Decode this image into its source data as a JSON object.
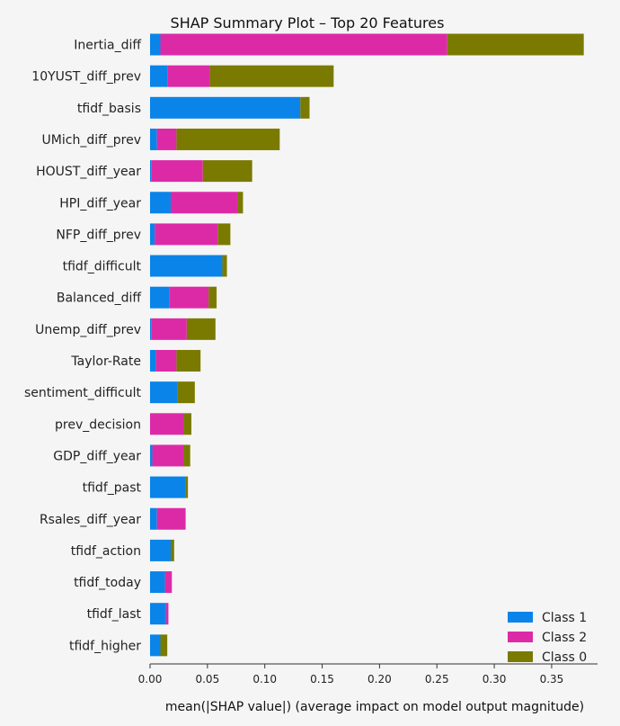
{
  "chart_data": {
    "type": "bar",
    "stacked": true,
    "orientation": "horizontal",
    "title": "SHAP Summary Plot – Top 20 Features",
    "xlabel": "mean(|SHAP value|) (average impact on model output magnitude)",
    "ylabel": "",
    "xlim": [
      0,
      0.39
    ],
    "xticks": [
      "0.00",
      "0.05",
      "0.10",
      "0.15",
      "0.20",
      "0.25",
      "0.30",
      "0.35"
    ],
    "xtick_values": [
      0,
      0.05,
      0.1,
      0.15,
      0.2,
      0.25,
      0.3,
      0.35
    ],
    "grid": false,
    "legend_position": "lower-right",
    "categories": [
      "Inertia_diff",
      "10YUST_diff_prev",
      "tfidf_basis",
      "UMich_diff_prev",
      "HOUST_diff_year",
      "HPI_diff_year",
      "NFP_diff_prev",
      "tfidf_difficult",
      "Balanced_diff",
      "Unemp_diff_prev",
      "Taylor-Rate",
      "sentiment_difficult",
      "prev_decision",
      "GDP_diff_year",
      "tfidf_past",
      "Rsales_diff_year",
      "tfidf_action",
      "tfidf_today",
      "tfidf_last",
      "tfidf_higher"
    ],
    "series": [
      {
        "name": "Class 1",
        "color": "#0a84e8",
        "values": [
          0.009,
          0.015,
          0.131,
          0.006,
          0.001,
          0.018,
          0.004,
          0.063,
          0.017,
          0.001,
          0.005,
          0.024,
          0.0,
          0.002,
          0.031,
          0.006,
          0.018,
          0.013,
          0.014,
          0.009
        ]
      },
      {
        "name": "Class 2",
        "color": "#dc2aa7",
        "values": [
          0.25,
          0.037,
          0.0,
          0.017,
          0.045,
          0.058,
          0.055,
          0.0,
          0.034,
          0.031,
          0.018,
          0.0,
          0.029,
          0.027,
          0.0,
          0.025,
          0.0,
          0.006,
          0.002,
          0.0
        ]
      },
      {
        "name": "Class 0",
        "color": "#7a7a00",
        "values": [
          0.119,
          0.108,
          0.008,
          0.09,
          0.043,
          0.005,
          0.011,
          0.004,
          0.007,
          0.025,
          0.021,
          0.015,
          0.007,
          0.006,
          0.002,
          0.0,
          0.003,
          0.0,
          0.0,
          0.006
        ]
      }
    ],
    "legend_order": [
      "Class 1",
      "Class 2",
      "Class 0"
    ]
  }
}
